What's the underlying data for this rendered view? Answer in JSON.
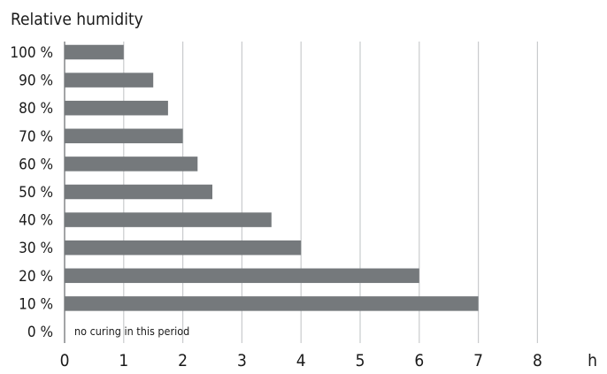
{
  "chart_data": {
    "type": "bar",
    "orientation": "horizontal",
    "title": "Relative humidity",
    "categories": [
      "100 %",
      "90 %",
      "80 %",
      "70 %",
      "60 %",
      "50 %",
      "40 %",
      "30 %",
      "20 %",
      "10 %",
      "0 %"
    ],
    "values": [
      1,
      1.5,
      1.75,
      2,
      2.25,
      2.5,
      3.5,
      4,
      6,
      7,
      0
    ],
    "x_ticks": [
      "0",
      "1",
      "2",
      "3",
      "4",
      "5",
      "6",
      "7",
      "8"
    ],
    "x_unit": "h",
    "xlim": [
      0,
      8
    ],
    "grid": true,
    "annotation": "no curing in this period",
    "bar_color": "#75797c",
    "grid_color": "#c9cbcd"
  }
}
